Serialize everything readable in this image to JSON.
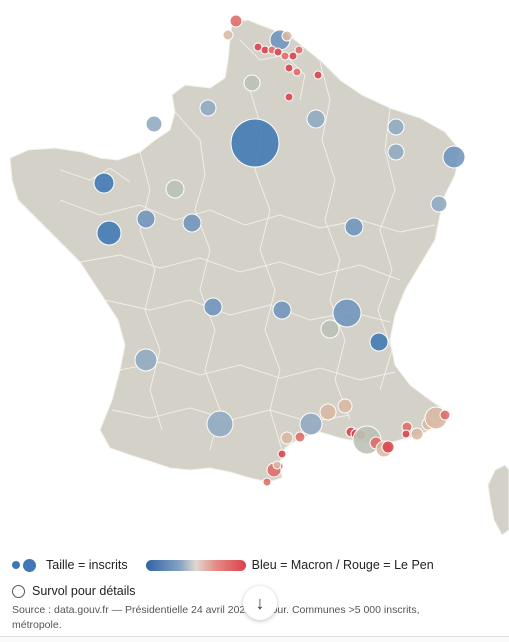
{
  "legend": {
    "size_label": "Taille = inscrits",
    "color_label": "Bleu = Macron / Rouge = Le Pen"
  },
  "hover": {
    "label": "Survol pour détails"
  },
  "source": {
    "line1": "Source : data.gouv.fr — Présidentielle 24 avril 2022 2e tour. Communes >5 000 inscrits,",
    "line2": "métropole."
  },
  "scroll_button": {
    "icon": "arrow-down-icon",
    "glyph": "↓"
  },
  "colors": {
    "land": "#d4d1c8",
    "borders": "#f4f2ec",
    "macron_strong": "#2f63a6",
    "le_pen_strong": "#d9424a"
  }
}
